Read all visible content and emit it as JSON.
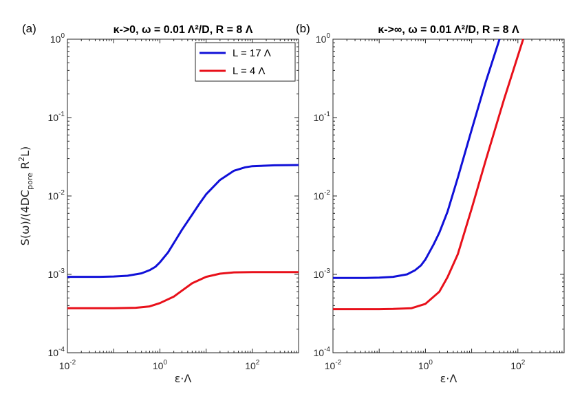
{
  "chart_data": [
    {
      "type": "line",
      "panel_label": "(a)",
      "title": "κ->0, ω = 0.01 Λ²/D, R = 8 Λ",
      "xlabel": "ε·Λ",
      "ylabel": "S(ω)/(4DC_pore R²L)",
      "x_scale": "log",
      "y_scale": "log",
      "xlim": [
        0.01,
        1000
      ],
      "ylim": [
        0.0001,
        1
      ],
      "x_ticks": [
        {
          "value": 0.01,
          "base": "10",
          "exp": "-2"
        },
        {
          "value": 1,
          "base": "10",
          "exp": "0"
        },
        {
          "value": 100,
          "base": "10",
          "exp": "2"
        }
      ],
      "y_ticks": [
        {
          "value": 0.0001,
          "base": "10",
          "exp": "-4"
        },
        {
          "value": 0.001,
          "base": "10",
          "exp": "-3"
        },
        {
          "value": 0.01,
          "base": "10",
          "exp": "-2"
        },
        {
          "value": 0.1,
          "base": "10",
          "exp": "-1"
        },
        {
          "value": 1,
          "base": "10",
          "exp": "0"
        }
      ],
      "legend": {
        "placement": "top-right"
      },
      "series": [
        {
          "name": "L = 17 Λ",
          "color": "#1010d8",
          "x": [
            0.01,
            0.05,
            0.1,
            0.2,
            0.4,
            0.6,
            0.8,
            1,
            1.5,
            2,
            3,
            5,
            7,
            10,
            20,
            40,
            70,
            100,
            300,
            1000
          ],
          "y": [
            0.00093,
            0.00093,
            0.00094,
            0.00096,
            0.00103,
            0.00113,
            0.00125,
            0.00142,
            0.0019,
            0.0025,
            0.0037,
            0.0058,
            0.0078,
            0.0105,
            0.016,
            0.021,
            0.0232,
            0.024,
            0.0246,
            0.0248
          ]
        },
        {
          "name": "L = 4 Λ",
          "color": "#e8101a",
          "x": [
            0.01,
            0.05,
            0.1,
            0.3,
            0.6,
            1,
            2,
            3,
            5,
            10,
            20,
            40,
            100,
            300,
            1000
          ],
          "y": [
            0.00037,
            0.00037,
            0.00037,
            0.000375,
            0.00039,
            0.00043,
            0.00052,
            0.00062,
            0.00077,
            0.00093,
            0.00102,
            0.00106,
            0.00107,
            0.00107,
            0.00107
          ]
        }
      ]
    },
    {
      "type": "line",
      "panel_label": "(b)",
      "title": "κ->∞, ω = 0.01 Λ²/D, R = 8 Λ",
      "xlabel": "ε·Λ",
      "ylabel": "",
      "x_scale": "log",
      "y_scale": "log",
      "xlim": [
        0.01,
        1000
      ],
      "ylim": [
        0.0001,
        1
      ],
      "x_ticks": [
        {
          "value": 0.01,
          "base": "10",
          "exp": "-2"
        },
        {
          "value": 1,
          "base": "10",
          "exp": "0"
        },
        {
          "value": 100,
          "base": "10",
          "exp": "2"
        }
      ],
      "y_ticks": [
        {
          "value": 0.0001,
          "base": "10",
          "exp": "-4"
        },
        {
          "value": 0.001,
          "base": "10",
          "exp": "-3"
        },
        {
          "value": 0.01,
          "base": "10",
          "exp": "-2"
        },
        {
          "value": 0.1,
          "base": "10",
          "exp": "-1"
        },
        {
          "value": 1,
          "base": "10",
          "exp": "0"
        }
      ],
      "series": [
        {
          "name": "L = 17 Λ",
          "color": "#1010d8",
          "x": [
            0.01,
            0.05,
            0.1,
            0.2,
            0.4,
            0.6,
            0.8,
            1,
            1.5,
            2,
            3,
            5,
            10,
            20,
            40
          ],
          "y": [
            0.0009,
            0.0009,
            0.00091,
            0.00093,
            0.001,
            0.00113,
            0.0013,
            0.00155,
            0.0024,
            0.0034,
            0.0063,
            0.017,
            0.07,
            0.28,
            1.0
          ]
        },
        {
          "name": "L = 4 Λ",
          "color": "#e8101a",
          "x": [
            0.01,
            0.05,
            0.1,
            0.2,
            0.5,
            1,
            2,
            3,
            5,
            10,
            20,
            50,
            130
          ],
          "y": [
            0.00036,
            0.00036,
            0.00036,
            0.000362,
            0.00037,
            0.00042,
            0.0006,
            0.00092,
            0.0018,
            0.0069,
            0.028,
            0.17,
            1.0
          ]
        }
      ]
    }
  ]
}
